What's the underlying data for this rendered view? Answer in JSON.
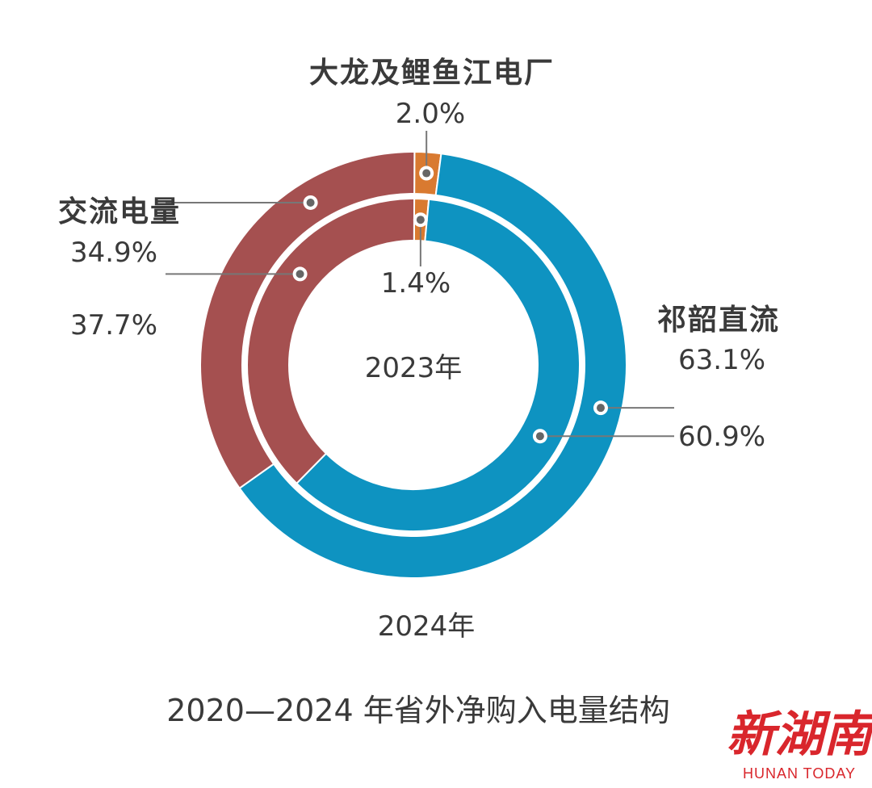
{
  "chart_data": {
    "type": "pie",
    "title": "2020—2024 年省外净购入电量结构",
    "rings": [
      {
        "year": "2024年",
        "position": "outer",
        "categories": [
          "大龙及鲤鱼江电厂",
          "祁韶直流",
          "交流电量"
        ],
        "values": [
          2.0,
          63.1,
          34.9
        ],
        "labels": [
          "2.0%",
          "63.1%",
          "34.9%"
        ]
      },
      {
        "year": "2023年",
        "position": "inner",
        "categories": [
          "大龙及鲤鱼江电厂",
          "祁韶直流",
          "交流电量"
        ],
        "values": [
          1.4,
          60.9,
          37.7
        ],
        "labels": [
          "1.4%",
          "60.9%",
          "37.7%"
        ]
      }
    ],
    "colors": {
      "大龙及鲤鱼江电厂": "#d97a30",
      "祁韶直流": "#0e93c1",
      "交流电量": "#a55050"
    }
  },
  "category_labels": {
    "dalong": "大龙及鲤鱼江电厂",
    "qishao": "祁韶直流",
    "jiaoliu": "交流电量"
  },
  "year_labels": {
    "inner": "2023年",
    "outer": "2024年"
  },
  "logo": {
    "cn": "新湖南",
    "en": "HUNAN TODAY"
  }
}
